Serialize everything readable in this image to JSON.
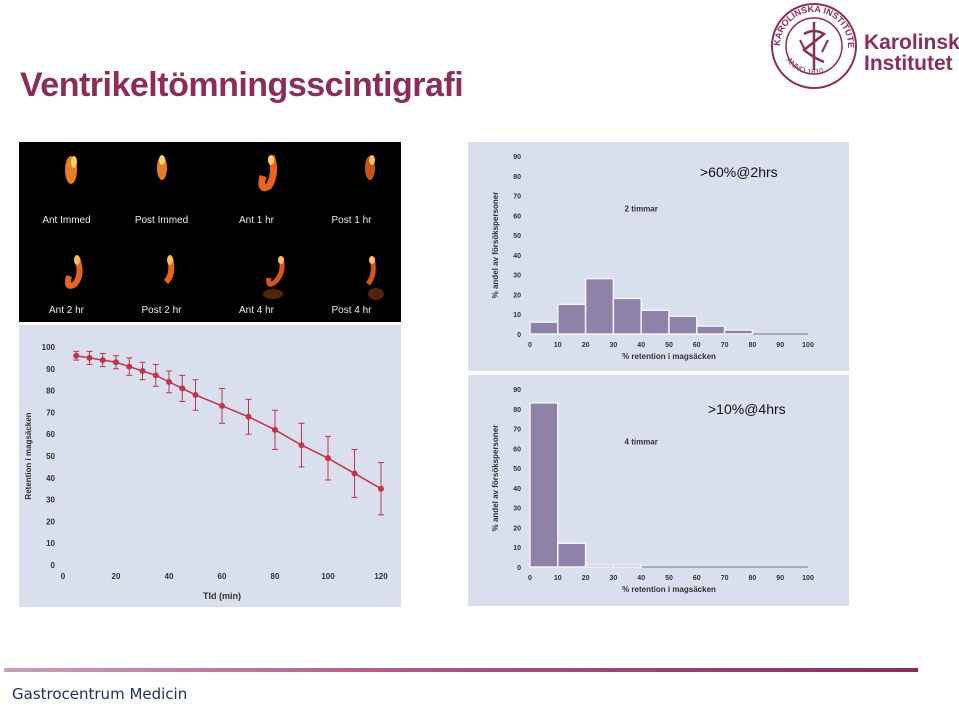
{
  "slide": {
    "title": "Ventrikeltömningsscintigrafi",
    "footer": "Gastrocentrum Medicin"
  },
  "logo": {
    "name_line1": "Karolinska",
    "name_line2": "Institutet",
    "seal_text": "KAROLINSKA INSTITUTET",
    "seal_year": "ANNO 1810",
    "color": "#8b2d5c"
  },
  "scans": [
    {
      "label": "Ant Immed"
    },
    {
      "label": "Post Immed"
    },
    {
      "label": "Ant 1 hr"
    },
    {
      "label": "Post 1 hr"
    },
    {
      "label": "Ant 2 hr"
    },
    {
      "label": "Post 2 hr"
    },
    {
      "label": "Ant 4 hr"
    },
    {
      "label": "Post 4 hr"
    }
  ],
  "annotations": {
    "hist1": ">60%@2hrs",
    "hist2": ">10%@4hrs"
  },
  "chart_data": [
    {
      "type": "line",
      "xlabel": "TId (min)",
      "ylabel": "Retention i magsäcken",
      "xlim": [
        0,
        120
      ],
      "ylim": [
        0,
        100
      ],
      "xticks": [
        0,
        20,
        40,
        60,
        80,
        100,
        120
      ],
      "yticks": [
        0,
        10,
        20,
        30,
        40,
        50,
        60,
        70,
        80,
        90,
        100
      ],
      "color": "#c0354a",
      "x": [
        5,
        10,
        15,
        20,
        25,
        30,
        35,
        40,
        45,
        50,
        60,
        70,
        80,
        90,
        100,
        110,
        120
      ],
      "y": [
        96,
        95,
        94,
        93,
        91,
        89,
        87,
        84,
        81,
        78,
        73,
        68,
        62,
        55,
        49,
        42,
        35
      ],
      "err": [
        2,
        3,
        3,
        3,
        4,
        4,
        5,
        5,
        6,
        7,
        8,
        8,
        9,
        10,
        10,
        11,
        12
      ]
    },
    {
      "type": "bar",
      "subtitle": "2 timmar",
      "xlabel": "% retention i magsäcken",
      "ylabel": "% andel av försökspersoner",
      "categories": [
        "0-10",
        "10-20",
        "20-30",
        "30-40",
        "40-50",
        "50-60",
        "60-70",
        "70-80",
        "80-90",
        "90-100"
      ],
      "values": [
        6,
        15,
        28,
        18,
        12,
        9,
        4,
        2,
        0,
        0
      ],
      "xticks": [
        0,
        10,
        20,
        30,
        40,
        50,
        60,
        70,
        80,
        90,
        100
      ],
      "yticks": [
        0,
        10,
        20,
        30,
        40,
        50,
        60,
        70,
        80,
        90
      ],
      "ylim": [
        0,
        90
      ],
      "color": "#8e82a8"
    },
    {
      "type": "bar",
      "subtitle": "4 timmar",
      "xlabel": "% retention i magsäcken",
      "ylabel": "% andel av försökspersoner",
      "categories": [
        "0-10",
        "10-20",
        "20-30",
        "30-40",
        "40-50",
        "50-60",
        "60-70",
        "70-80",
        "80-90",
        "90-100"
      ],
      "values": [
        83,
        12,
        1,
        1,
        0,
        0,
        0,
        0,
        0,
        0
      ],
      "xticks": [
        0,
        10,
        20,
        30,
        40,
        50,
        60,
        70,
        80,
        90,
        100
      ],
      "yticks": [
        0,
        10,
        20,
        30,
        40,
        50,
        60,
        70,
        80,
        90
      ],
      "ylim": [
        0,
        90
      ],
      "color": "#8e82a8"
    }
  ]
}
